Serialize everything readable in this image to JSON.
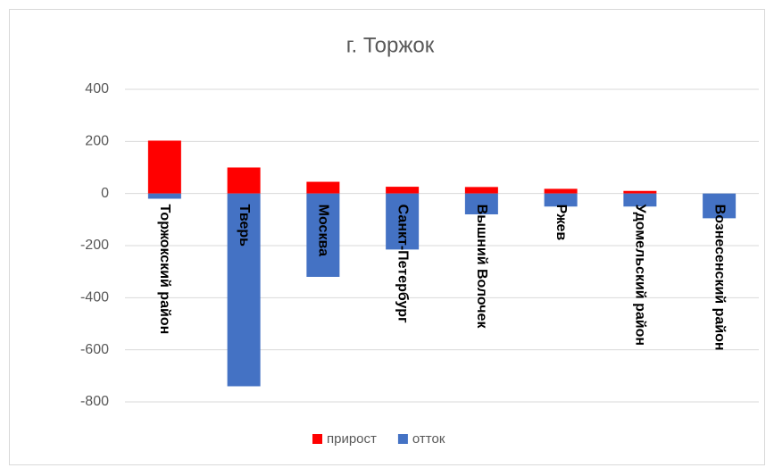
{
  "chart_data": {
    "type": "bar",
    "stacked": true,
    "title": "г. Торжок",
    "categories": [
      "Торжокский район",
      "Тверь",
      "Москва",
      "Санкт-Петербург",
      "Вышний Волочек",
      "Ржев",
      "Удомельский район",
      "Вознесенский район"
    ],
    "series": [
      {
        "name": "прирост",
        "color": "#ff0000",
        "values": [
          203,
          100,
          45,
          26,
          25,
          18,
          10,
          0
        ]
      },
      {
        "name": "отток",
        "color": "#4472c4",
        "values": [
          -20,
          -740,
          -320,
          -215,
          -80,
          -50,
          -50,
          -95
        ]
      }
    ],
    "ylim": [
      -800,
      400
    ],
    "yticks": [
      400,
      200,
      0,
      -200,
      -400,
      -600,
      -800
    ],
    "grid": true,
    "legend": "bottom"
  }
}
